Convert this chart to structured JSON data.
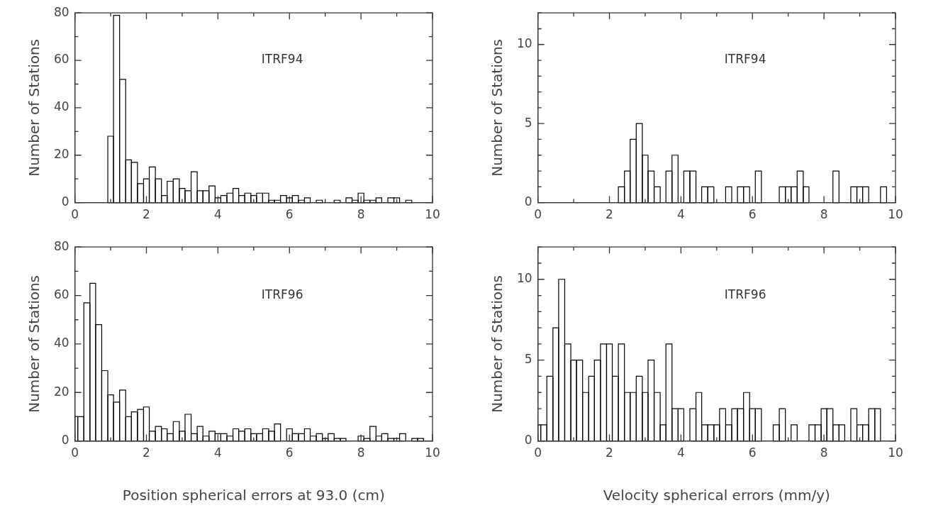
{
  "chart_data": [
    {
      "type": "histogram",
      "ylabel": "Number of Stations",
      "annotations": [
        "ITRF94"
      ],
      "color": "#000000",
      "bins": [
        0.92,
        1.08,
        1.25,
        1.42,
        1.58,
        1.75,
        1.92,
        2.08,
        2.25,
        2.42,
        2.58,
        2.75,
        2.92,
        3.08,
        3.25,
        3.42,
        3.58,
        3.75,
        3.92,
        4.08,
        4.25,
        4.42,
        4.58,
        4.75,
        4.92,
        5.08,
        5.25,
        5.42,
        5.58,
        5.75,
        5.92,
        6.08,
        6.25,
        6.42,
        6.58,
        6.75,
        6.92,
        7.25,
        7.42,
        7.58,
        7.75,
        7.92,
        8.08,
        8.25,
        8.42,
        8.58,
        8.75,
        8.92,
        9.08,
        9.25,
        9.42
      ],
      "values": [
        28,
        79,
        52,
        18,
        17,
        8,
        10,
        15,
        10,
        3,
        9,
        10,
        6,
        5,
        13,
        5,
        5,
        7,
        2,
        3,
        4,
        6,
        3,
        4,
        3,
        4,
        4,
        1,
        1,
        3,
        2,
        3,
        1,
        2,
        0,
        1,
        0,
        1,
        0,
        2,
        1,
        4,
        1,
        1,
        2,
        0,
        2,
        2,
        0,
        1
      ],
      "xlim": [
        0,
        10
      ],
      "xticks": [
        0,
        {
          "value": 1,
          "label": null
        },
        2,
        {
          "value": 3,
          "label": null
        },
        4,
        {
          "value": 5,
          "label": null
        },
        6,
        {
          "value": 7,
          "label": null
        },
        8,
        {
          "value": 9,
          "label": null
        },
        10
      ],
      "ylim": [
        0,
        80
      ],
      "yticks": [
        0,
        {
          "value": 10,
          "label": null
        },
        20,
        {
          "value": 30,
          "label": null
        },
        40,
        {
          "value": 50,
          "label": null
        },
        60,
        {
          "value": 70,
          "label": null
        },
        80
      ]
    },
    {
      "type": "histogram",
      "ylabel": "Number of Stations",
      "annotations": [
        "ITRF94"
      ],
      "color": "#000000",
      "bins": [
        2.25,
        2.42,
        2.58,
        2.75,
        2.92,
        3.08,
        3.25,
        3.42,
        3.58,
        3.75,
        3.92,
        4.08,
        4.25,
        4.42,
        4.58,
        4.75,
        4.92,
        5.25,
        5.42,
        5.58,
        5.75,
        5.92,
        6.08,
        6.25,
        6.75,
        6.92,
        7.08,
        7.25,
        7.42,
        7.58,
        8.25,
        8.42,
        8.75,
        8.92,
        9.08,
        9.25,
        9.58,
        9.75
      ],
      "values": [
        1,
        2,
        4,
        5,
        3,
        2,
        1,
        0,
        2,
        3,
        0,
        2,
        2,
        0,
        1,
        1,
        0,
        1,
        0,
        1,
        1,
        0,
        2,
        0,
        1,
        1,
        1,
        2,
        1,
        0,
        2,
        0,
        1,
        1,
        1,
        0,
        1
      ],
      "xlim": [
        0,
        10
      ],
      "xticks": [
        0,
        {
          "value": 1,
          "label": null
        },
        2,
        {
          "value": 3,
          "label": null
        },
        4,
        {
          "value": 5,
          "label": null
        },
        6,
        {
          "value": 7,
          "label": null
        },
        8,
        {
          "value": 9,
          "label": null
        },
        10
      ],
      "ylim": [
        0,
        12
      ],
      "yticks": [
        0,
        {
          "value": 1,
          "label": null
        },
        {
          "value": 2,
          "label": null
        },
        {
          "value": 3,
          "label": null
        },
        {
          "value": 4,
          "label": null
        },
        5,
        {
          "value": 6,
          "label": null
        },
        {
          "value": 7,
          "label": null
        },
        {
          "value": 8,
          "label": null
        },
        {
          "value": 9,
          "label": null
        },
        10,
        {
          "value": 11,
          "label": null
        },
        {
          "value": 12,
          "label": null
        }
      ]
    },
    {
      "type": "histogram",
      "xlabel": "Position spherical errors at 93.0 (cm)",
      "ylabel": "Number of Stations",
      "annotations": [
        "ITRF96"
      ],
      "color": "#000000",
      "bins": [
        0,
        0.08,
        0.25,
        0.42,
        0.58,
        0.75,
        0.92,
        1.08,
        1.25,
        1.42,
        1.58,
        1.75,
        1.92,
        2.08,
        2.25,
        2.42,
        2.58,
        2.75,
        2.92,
        3.08,
        3.25,
        3.42,
        3.58,
        3.75,
        3.92,
        4.08,
        4.25,
        4.42,
        4.58,
        4.75,
        4.92,
        5.08,
        5.25,
        5.42,
        5.58,
        5.75,
        5.92,
        6.08,
        6.25,
        6.42,
        6.58,
        6.75,
        6.92,
        7.08,
        7.25,
        7.42,
        7.58,
        7.92,
        8.08,
        8.25,
        8.42,
        8.58,
        8.75,
        8.92,
        9.08,
        9.25,
        9.42,
        9.58,
        9.75
      ],
      "values": [
        10,
        10,
        57,
        65,
        48,
        29,
        19,
        16,
        21,
        10,
        12,
        13,
        14,
        4,
        6,
        5,
        3,
        8,
        4,
        11,
        3,
        6,
        2,
        4,
        3,
        3,
        2,
        5,
        4,
        5,
        3,
        3,
        5,
        4,
        7,
        0,
        5,
        3,
        3,
        5,
        2,
        3,
        1,
        3,
        1,
        1,
        0,
        2,
        1,
        6,
        2,
        3,
        1,
        1,
        3,
        0,
        1,
        1
      ],
      "xlim": [
        0,
        10
      ],
      "xticks": [
        0,
        {
          "value": 1,
          "label": null
        },
        2,
        {
          "value": 3,
          "label": null
        },
        4,
        {
          "value": 5,
          "label": null
        },
        6,
        {
          "value": 7,
          "label": null
        },
        8,
        {
          "value": 9,
          "label": null
        },
        10
      ],
      "ylim": [
        0,
        80
      ],
      "yticks": [
        0,
        {
          "value": 10,
          "label": null
        },
        20,
        {
          "value": 30,
          "label": null
        },
        40,
        {
          "value": 50,
          "label": null
        },
        60,
        {
          "value": 70,
          "label": null
        },
        80
      ]
    },
    {
      "type": "histogram",
      "xlabel": "Velocity spherical errors (mm/y)",
      "ylabel": "Number of Stations",
      "annotations": [
        "ITRF96"
      ],
      "color": "#000000",
      "bins": [
        0,
        0.08,
        0.25,
        0.42,
        0.58,
        0.75,
        0.92,
        1.08,
        1.25,
        1.42,
        1.58,
        1.75,
        1.92,
        2.08,
        2.25,
        2.42,
        2.58,
        2.75,
        2.92,
        3.08,
        3.25,
        3.42,
        3.58,
        3.75,
        3.92,
        4.08,
        4.25,
        4.42,
        4.58,
        4.75,
        4.92,
        5.08,
        5.25,
        5.42,
        5.58,
        5.75,
        5.92,
        6.08,
        6.25,
        6.58,
        6.75,
        6.92,
        7.08,
        7.25,
        7.58,
        7.75,
        7.92,
        8.08,
        8.25,
        8.42,
        8.58,
        8.75,
        8.92,
        9.08,
        9.25,
        9.42,
        9.58
      ],
      "values": [
        1,
        1,
        4,
        7,
        10,
        6,
        5,
        5,
        3,
        4,
        5,
        6,
        6,
        4,
        6,
        3,
        3,
        4,
        3,
        5,
        3,
        1,
        6,
        2,
        2,
        0,
        2,
        3,
        1,
        1,
        1,
        2,
        1,
        2,
        2,
        3,
        2,
        2,
        0,
        1,
        2,
        0,
        1,
        0,
        1,
        1,
        2,
        2,
        1,
        1,
        0,
        2,
        1,
        1,
        2,
        2
      ],
      "xlim": [
        0,
        10
      ],
      "xticks": [
        0,
        {
          "value": 1,
          "label": null
        },
        2,
        {
          "value": 3,
          "label": null
        },
        4,
        {
          "value": 5,
          "label": null
        },
        6,
        {
          "value": 7,
          "label": null
        },
        8,
        {
          "value": 9,
          "label": null
        },
        10
      ],
      "ylim": [
        0,
        12
      ],
      "yticks": [
        0,
        {
          "value": 1,
          "label": null
        },
        {
          "value": 2,
          "label": null
        },
        {
          "value": 3,
          "label": null
        },
        {
          "value": 4,
          "label": null
        },
        5,
        {
          "value": 6,
          "label": null
        },
        {
          "value": 7,
          "label": null
        },
        {
          "value": 8,
          "label": null
        },
        {
          "value": 9,
          "label": null
        },
        10,
        {
          "value": 11,
          "label": null
        },
        {
          "value": 12,
          "label": null
        }
      ]
    }
  ]
}
